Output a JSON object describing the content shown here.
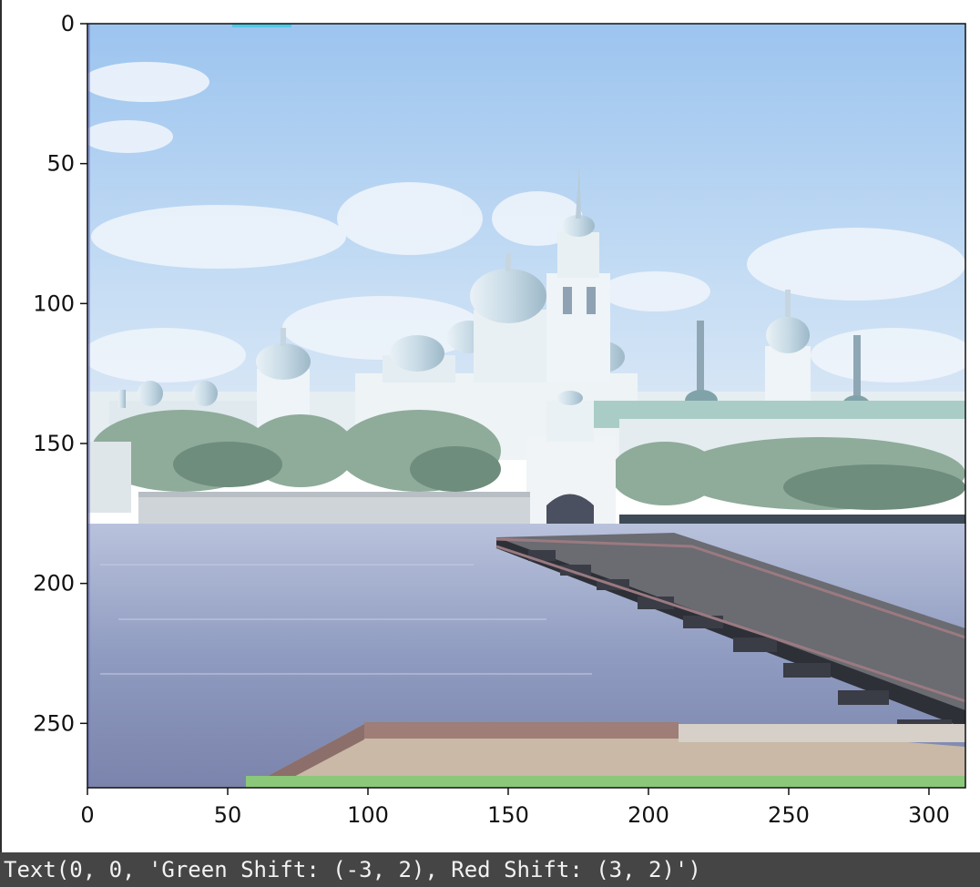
{
  "output_text": "Text(0, 0, 'Green Shift: (-3, 2), Red Shift: (3, 2)')",
  "chart_data": {
    "type": "image",
    "title": "",
    "xlabel": "",
    "ylabel": "",
    "xlim": [
      0,
      313
    ],
    "ylim": [
      273,
      0
    ],
    "x_ticks": [
      "0",
      "50",
      "100",
      "150",
      "200",
      "250",
      "300"
    ],
    "y_ticks": [
      "0",
      "50",
      "100",
      "150",
      "200",
      "250"
    ],
    "grid": false,
    "content": "aligned color photograph of a monastery across water with a wooden pontoon bridge"
  },
  "colors": {
    "text_bar_bg": "#454545",
    "text_bar_fg": "#f2f2f2",
    "axis": "#111111"
  }
}
